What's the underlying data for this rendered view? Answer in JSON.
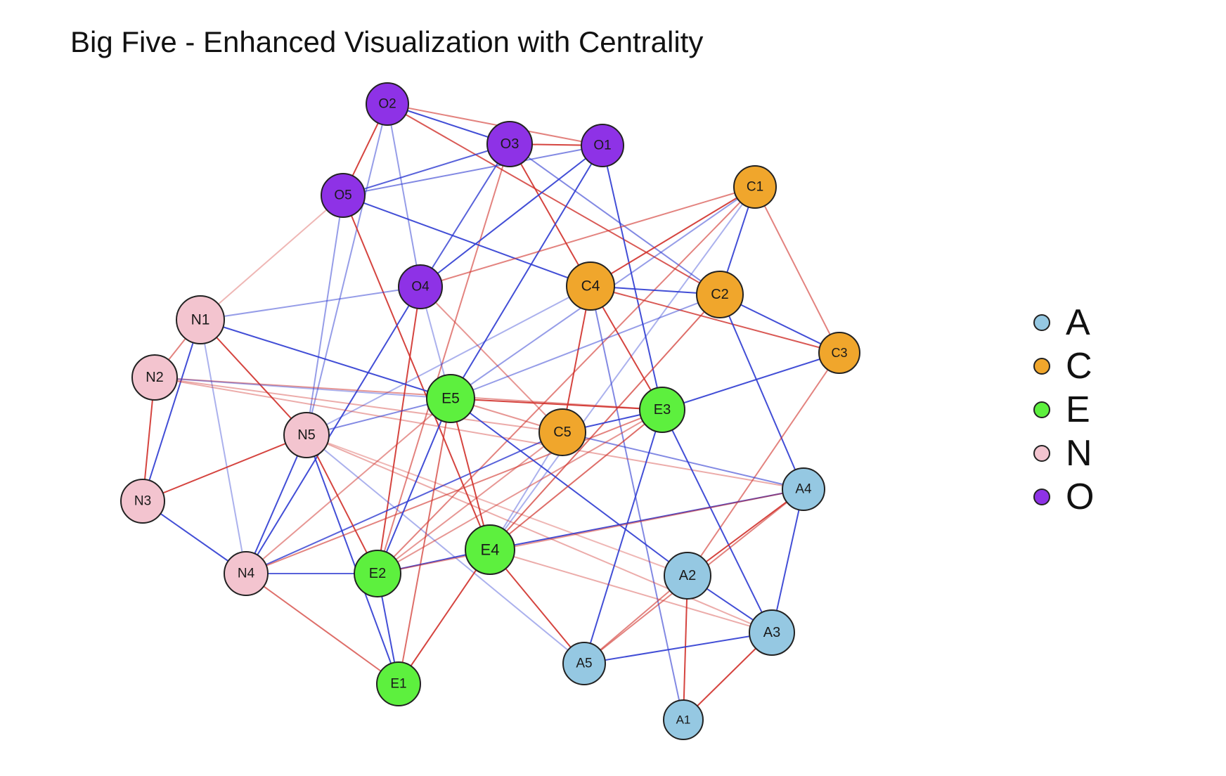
{
  "title": "Big Five - Enhanced Visualization with Centrality",
  "legend": [
    {
      "label": "A",
      "color": "#95c8e2"
    },
    {
      "label": "C",
      "color": "#f0a62c"
    },
    {
      "label": "E",
      "color": "#5df03e"
    },
    {
      "label": "N",
      "color": "#f3c4cf"
    },
    {
      "label": "O",
      "color": "#8e32e6"
    }
  ],
  "edge_colors": {
    "positive": "#2e3bd1",
    "negative": "#d0302a"
  },
  "nodes": [
    {
      "id": "O2",
      "group": "O"
    },
    {
      "id": "O3",
      "group": "O"
    },
    {
      "id": "O1",
      "group": "O"
    },
    {
      "id": "O5",
      "group": "O"
    },
    {
      "id": "O4",
      "group": "O"
    },
    {
      "id": "C1",
      "group": "C"
    },
    {
      "id": "C4",
      "group": "C"
    },
    {
      "id": "C2",
      "group": "C"
    },
    {
      "id": "C3",
      "group": "C"
    },
    {
      "id": "C5",
      "group": "C"
    },
    {
      "id": "N1",
      "group": "N"
    },
    {
      "id": "N2",
      "group": "N"
    },
    {
      "id": "N5",
      "group": "N"
    },
    {
      "id": "N3",
      "group": "N"
    },
    {
      "id": "N4",
      "group": "N"
    },
    {
      "id": "E5",
      "group": "E"
    },
    {
      "id": "E3",
      "group": "E"
    },
    {
      "id": "E4",
      "group": "E"
    },
    {
      "id": "E2",
      "group": "E"
    },
    {
      "id": "E1",
      "group": "E"
    },
    {
      "id": "A4",
      "group": "A"
    },
    {
      "id": "A2",
      "group": "A"
    },
    {
      "id": "A3",
      "group": "A"
    },
    {
      "id": "A5",
      "group": "A"
    },
    {
      "id": "A1",
      "group": "A"
    }
  ],
  "edges": [
    [
      "O2",
      "O3",
      "pos",
      0.9
    ],
    [
      "O2",
      "O1",
      "neg",
      0.6
    ],
    [
      "O2",
      "O5",
      "neg",
      0.9
    ],
    [
      "O2",
      "O4",
      "pos",
      0.5
    ],
    [
      "O2",
      "C2",
      "neg",
      0.8
    ],
    [
      "O2",
      "N5",
      "pos",
      0.5
    ],
    [
      "O3",
      "O1",
      "neg",
      0.9
    ],
    [
      "O3",
      "O5",
      "pos",
      0.8
    ],
    [
      "O3",
      "O4",
      "pos",
      0.8
    ],
    [
      "O3",
      "C4",
      "neg",
      0.9
    ],
    [
      "O3",
      "C2",
      "pos",
      0.6
    ],
    [
      "O3",
      "E2",
      "neg",
      0.6
    ],
    [
      "O1",
      "O5",
      "pos",
      0.6
    ],
    [
      "O1",
      "O4",
      "pos",
      0.9
    ],
    [
      "O1",
      "E3",
      "pos",
      0.9
    ],
    [
      "O1",
      "E5",
      "pos",
      0.9
    ],
    [
      "O5",
      "C4",
      "pos",
      0.9
    ],
    [
      "O5",
      "E4",
      "neg",
      0.9
    ],
    [
      "O5",
      "N1",
      "neg",
      0.35
    ],
    [
      "O5",
      "N5",
      "pos",
      0.5
    ],
    [
      "O4",
      "C1",
      "neg",
      0.6
    ],
    [
      "O4",
      "N1",
      "pos",
      0.5
    ],
    [
      "O4",
      "E2",
      "neg",
      0.9
    ],
    [
      "O4",
      "N4",
      "pos",
      0.9
    ],
    [
      "O4",
      "C5",
      "neg",
      0.5
    ],
    [
      "O4",
      "E5",
      "pos",
      0.4
    ],
    [
      "C1",
      "C4",
      "neg",
      0.9
    ],
    [
      "C1",
      "C2",
      "pos",
      0.9
    ],
    [
      "C1",
      "C3",
      "neg",
      0.6
    ],
    [
      "C1",
      "E2",
      "neg",
      0.6
    ],
    [
      "C1",
      "E5",
      "pos",
      0.5
    ],
    [
      "C1",
      "E4",
      "pos",
      0.4
    ],
    [
      "C4",
      "C2",
      "pos",
      0.9
    ],
    [
      "C4",
      "C5",
      "neg",
      0.9
    ],
    [
      "C4",
      "E3",
      "neg",
      0.9
    ],
    [
      "C4",
      "C3",
      "neg",
      0.8
    ],
    [
      "C4",
      "N5",
      "pos",
      0.4
    ],
    [
      "C4",
      "A1",
      "pos",
      0.6
    ],
    [
      "C2",
      "C3",
      "pos",
      0.9
    ],
    [
      "C2",
      "A4",
      "pos",
      0.9
    ],
    [
      "C2",
      "E5",
      "pos",
      0.5
    ],
    [
      "C2",
      "E4",
      "neg",
      0.7
    ],
    [
      "C3",
      "E3",
      "pos",
      0.9
    ],
    [
      "C3",
      "A2",
      "neg",
      0.6
    ],
    [
      "C5",
      "E3",
      "pos",
      0.9
    ],
    [
      "C5",
      "A4",
      "pos",
      0.6
    ],
    [
      "C5",
      "N4",
      "pos",
      0.8
    ],
    [
      "C5",
      "E2",
      "neg",
      0.5
    ],
    [
      "C5",
      "E4",
      "pos",
      0.4
    ],
    [
      "N1",
      "N2",
      "neg",
      0.6
    ],
    [
      "N1",
      "N3",
      "pos",
      0.9
    ],
    [
      "N1",
      "N5",
      "neg",
      0.9
    ],
    [
      "N1",
      "N4",
      "pos",
      0.4
    ],
    [
      "N1",
      "E5",
      "pos",
      0.9
    ],
    [
      "N2",
      "N3",
      "neg",
      0.9
    ],
    [
      "N2",
      "E3",
      "neg",
      0.5
    ],
    [
      "N2",
      "E5",
      "pos",
      0.4
    ],
    [
      "N2",
      "C5",
      "neg",
      0.4
    ],
    [
      "N2",
      "A4",
      "neg",
      0.4
    ],
    [
      "N3",
      "N4",
      "pos",
      0.9
    ],
    [
      "N3",
      "N5",
      "neg",
      0.9
    ],
    [
      "N5",
      "N4",
      "pos",
      0.9
    ],
    [
      "N5",
      "E2",
      "neg",
      0.9
    ],
    [
      "N5",
      "E1",
      "pos",
      0.9
    ],
    [
      "N5",
      "E5",
      "pos",
      0.6
    ],
    [
      "N5",
      "A5",
      "pos",
      0.4
    ],
    [
      "N5",
      "A3",
      "neg",
      0.4
    ],
    [
      "N5",
      "A2",
      "neg",
      0.35
    ],
    [
      "N4",
      "E2",
      "pos",
      0.8
    ],
    [
      "N4",
      "E1",
      "neg",
      0.7
    ],
    [
      "N4",
      "E5",
      "neg",
      0.5
    ],
    [
      "N4",
      "E3",
      "neg",
      0.6
    ],
    [
      "E5",
      "E3",
      "neg",
      0.9
    ],
    [
      "E5",
      "E2",
      "pos",
      0.9
    ],
    [
      "E5",
      "E4",
      "neg",
      0.9
    ],
    [
      "E5",
      "E1",
      "neg",
      0.7
    ],
    [
      "E5",
      "A2",
      "pos",
      0.9
    ],
    [
      "E5",
      "C5",
      "neg",
      0.5
    ],
    [
      "E3",
      "A5",
      "pos",
      0.9
    ],
    [
      "E3",
      "A3",
      "pos",
      0.9
    ],
    [
      "E3",
      "E2",
      "neg",
      0.5
    ],
    [
      "E3",
      "E4",
      "neg",
      0.7
    ],
    [
      "E4",
      "E2",
      "pos",
      0.9
    ],
    [
      "E4",
      "E1",
      "neg",
      0.9
    ],
    [
      "E4",
      "A4",
      "pos",
      0.9
    ],
    [
      "E4",
      "A5",
      "neg",
      0.9
    ],
    [
      "E4",
      "A3",
      "neg",
      0.4
    ],
    [
      "E2",
      "E1",
      "pos",
      0.9
    ],
    [
      "E2",
      "A4",
      "neg",
      0.5
    ],
    [
      "A4",
      "A2",
      "neg",
      0.9
    ],
    [
      "A4",
      "A3",
      "pos",
      0.9
    ],
    [
      "A4",
      "A5",
      "neg",
      0.6
    ],
    [
      "A2",
      "A3",
      "pos",
      0.9
    ],
    [
      "A2",
      "A1",
      "neg",
      0.9
    ],
    [
      "A2",
      "A5",
      "neg",
      0.6
    ],
    [
      "A3",
      "A5",
      "pos",
      0.9
    ],
    [
      "A3",
      "A1",
      "neg",
      0.9
    ]
  ]
}
